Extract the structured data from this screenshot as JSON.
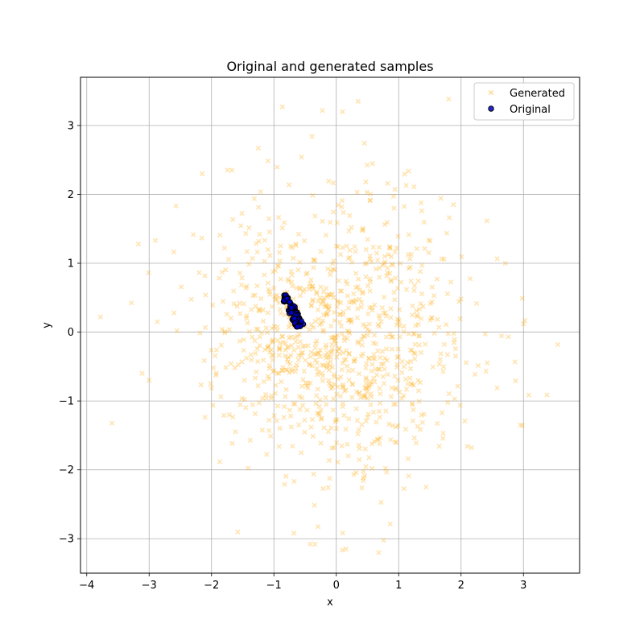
{
  "chart_data": {
    "type": "scatter",
    "title": "Original and generated samples",
    "xlabel": "x",
    "ylabel": "y",
    "xlim": [
      -4.1,
      3.9
    ],
    "ylim": [
      -3.5,
      3.7
    ],
    "xticks": [
      -4,
      -3,
      -2,
      -1,
      0,
      1,
      2,
      3
    ],
    "yticks": [
      -3,
      -2,
      -1,
      0,
      1,
      2,
      3
    ],
    "grid": true,
    "legend": {
      "placement": "top-right",
      "entries": [
        "Generated",
        "Original"
      ]
    },
    "series": [
      {
        "name": "Generated",
        "marker": "x",
        "color": "#ffa500",
        "alpha": 0.3,
        "generated_count": 1000,
        "x_mean": 0.0,
        "x_std": 1.0,
        "y_mean": 0.0,
        "y_std": 1.0,
        "seed": 7,
        "points": [
          [
            3.55,
            -0.18
          ],
          [
            -3.78,
            0.22
          ],
          [
            2.95,
            -1.35
          ],
          [
            2.98,
            0.49
          ],
          [
            -2.9,
            1.33
          ],
          [
            0.35,
            3.35
          ],
          [
            0.1,
            3.2
          ],
          [
            0.68,
            -3.2
          ],
          [
            -0.34,
            -3.08
          ],
          [
            -1.58,
            -2.9
          ],
          [
            -1.25,
            2.67
          ],
          [
            -2.15,
            2.3
          ],
          [
            2.71,
            1.0
          ],
          [
            3.0,
            0.12
          ],
          [
            -3.0,
            -0.7
          ]
        ]
      },
      {
        "name": "Original",
        "marker": "o",
        "color": "#0000cc",
        "edgecolor": "#000000",
        "cluster": {
          "count": 70,
          "x_range": [
            -0.88,
            -0.58
          ],
          "y_range": [
            0.08,
            0.56
          ],
          "seed": 3
        }
      }
    ]
  }
}
